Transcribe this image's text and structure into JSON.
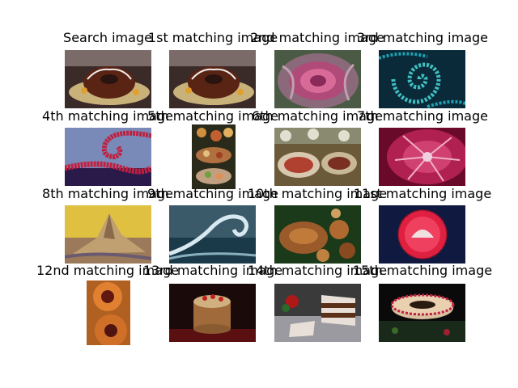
{
  "figure": {
    "titles": [
      "Search image",
      "1st matching image",
      "2nd matching image",
      "3rd matching image",
      "4th matching image",
      "5th matching image",
      "6th matching image",
      "7th matching image",
      "8th matching image",
      "9th matching image",
      "10th matching image",
      "11st matching image",
      "12nd matching image",
      "13rd matching image",
      "14th matching image",
      "15th matching image"
    ],
    "images": [
      "bundt-cake-on-plate",
      "bundt-cake-on-plate",
      "ornamental-cabbage",
      "teal-fractal-spiral",
      "red-fractal-spiral",
      "platter-of-appetizers",
      "table-of-dishes",
      "pink-flower-closeup",
      "yellow-mountain-peak",
      "ocean-wave",
      "baked-pastries-spread",
      "red-fruit-tart",
      "orange-flowers",
      "layered-nut-cake",
      "sliced-layer-cake",
      "ring-cake-on-dark"
    ]
  }
}
